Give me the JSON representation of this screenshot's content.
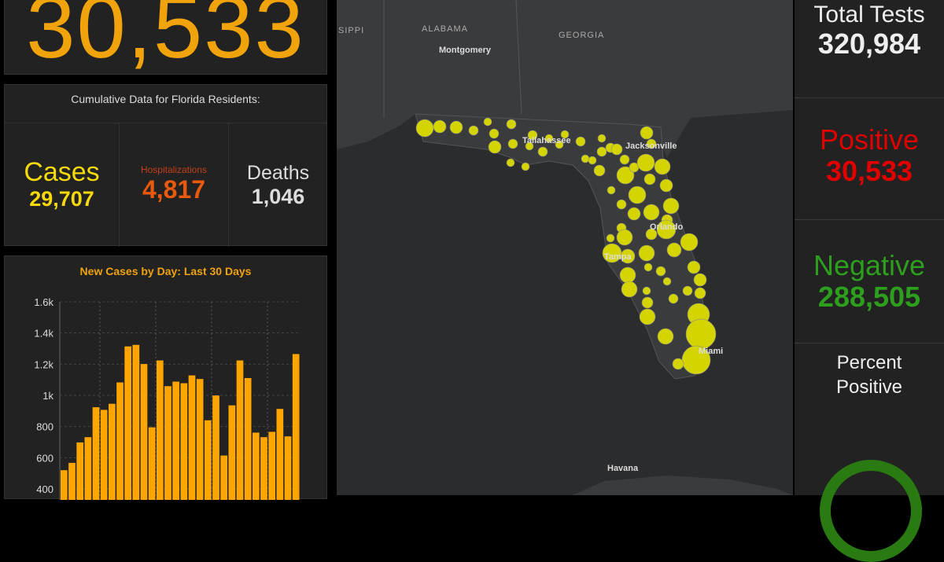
{
  "headline": {
    "value": "30,533",
    "color": "#f0a30a"
  },
  "cumulative": {
    "title": "Cumulative Data for Florida Residents:",
    "cases": {
      "label": "Cases",
      "value": "29,707",
      "color": "#f5d90a"
    },
    "hospitalizations": {
      "label": "Hospitalizations",
      "value": "4,817",
      "color": "#e8590c"
    },
    "deaths": {
      "label": "Deaths",
      "value": "1,046",
      "color": "#dddddd"
    }
  },
  "chart_data": {
    "type": "bar",
    "title": "New Cases by Day: Last 30 Days",
    "xlabel": "",
    "ylabel": "",
    "yticks": [
      "400",
      "600",
      "800",
      "1k",
      "1.2k",
      "1.4k",
      "1.6k"
    ],
    "ylim": [
      400,
      1600
    ],
    "grid": true,
    "color": "#ffa500",
    "values": [
      520,
      567,
      698,
      732,
      924,
      907,
      946,
      1083,
      1314,
      1324,
      1201,
      795,
      1224,
      1059,
      1088,
      1078,
      1128,
      1105,
      840,
      999,
      614,
      936,
      1224,
      1111,
      761,
      732,
      766,
      913,
      737,
      1265
    ]
  },
  "map": {
    "labels": {
      "mississippi": "SIPPI",
      "alabama": "ALABAMA",
      "georgia": "GEORGIA",
      "montgomery": "Montgomery",
      "tallahassee": "Tallahassee",
      "jacksonville": "Jacksonville",
      "orlando": "Orlando",
      "tampa": "Tampa",
      "miami": "Miami",
      "havana": "Havana"
    },
    "marker_color": "#d4d400"
  },
  "tests": {
    "total": {
      "label": "Total Tests",
      "value": "320,984",
      "color": "#eeeeee"
    },
    "positive": {
      "label": "Positive",
      "value": "30,533",
      "color": "#e00000"
    },
    "negative": {
      "label": "Negative",
      "value": "288,505",
      "color": "#2e9e1e"
    },
    "percent": {
      "label": "Percent Positive",
      "ring_color": "#2a7a12"
    }
  }
}
